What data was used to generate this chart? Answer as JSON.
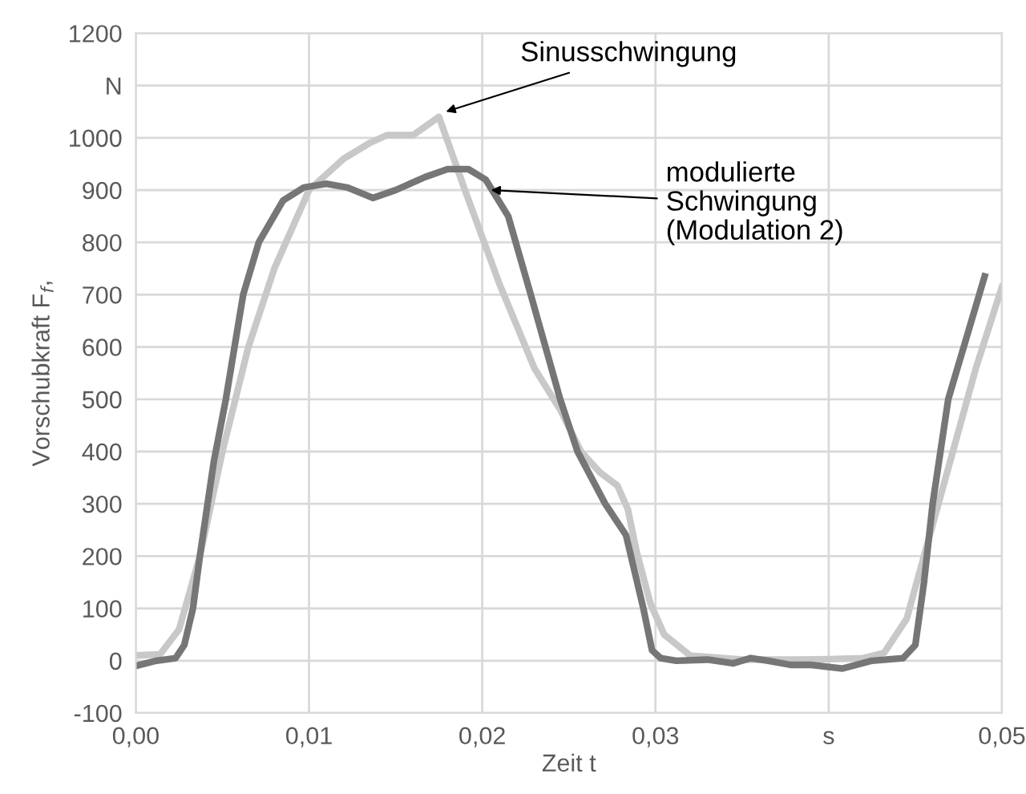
{
  "chart_data": {
    "type": "line",
    "xlabel": "Zeit t",
    "ylabel": "Vorschubkraft F$_{f}$,",
    "xlim": [
      0,
      0.05
    ],
    "ylim": [
      -100,
      1200
    ],
    "xticks": [
      {
        "value": 0,
        "label": "0,00"
      },
      {
        "value": 0.01,
        "label": "0,01"
      },
      {
        "value": 0.02,
        "label": "0,02"
      },
      {
        "value": 0.03,
        "label": "0,03"
      },
      {
        "value": 0.04,
        "label": "s"
      },
      {
        "value": 0.05,
        "label": "0,05"
      }
    ],
    "yticks": [
      -100,
      0,
      100,
      200,
      300,
      400,
      500,
      600,
      700,
      800,
      900,
      1000,
      {
        "value": 1100,
        "label": "N"
      },
      1200
    ],
    "grid": true,
    "legend": false,
    "marker": "none",
    "line_style": "solid",
    "series": [
      {
        "color": "#c8c8c8",
        "x": [
          0,
          0.0014,
          0.0025,
          0.0037,
          0.005,
          0.0065,
          0.008,
          0.01,
          0.012,
          0.0135,
          0.0145,
          0.016,
          0.0175,
          0.019,
          0.021,
          0.023,
          0.0245,
          0.0257,
          0.0268,
          0.0278,
          0.0284,
          0.0289,
          0.0297,
          0.0305,
          0.032,
          0.035,
          0.038,
          0.04,
          0.042,
          0.0432,
          0.0445,
          0.0455,
          0.047,
          0.0485,
          0.05
        ],
        "values": [
          10,
          12,
          60,
          200,
          400,
          600,
          750,
          900,
          960,
          990,
          1005,
          1005,
          1040,
          900,
          720,
          560,
          480,
          400,
          360,
          335,
          290,
          210,
          110,
          50,
          10,
          2,
          2,
          3,
          5,
          15,
          80,
          200,
          380,
          560,
          715
        ]
      },
      {
        "color": "#767676",
        "x": [
          0,
          0.0012,
          0.0023,
          0.0028,
          0.0033,
          0.0037,
          0.0045,
          0.0052,
          0.0062,
          0.0071,
          0.0085,
          0.0097,
          0.011,
          0.0122,
          0.0137,
          0.015,
          0.0167,
          0.018,
          0.0192,
          0.0202,
          0.0215,
          0.0228,
          0.0245,
          0.0255,
          0.0271,
          0.0283,
          0.0293,
          0.0298,
          0.0303,
          0.0312,
          0.033,
          0.0345,
          0.0355,
          0.0365,
          0.0378,
          0.039,
          0.0408,
          0.0425,
          0.0443,
          0.045,
          0.0455,
          0.046,
          0.0469,
          0.049
        ],
        "values": [
          -10,
          0,
          5,
          30,
          100,
          200,
          380,
          500,
          700,
          800,
          880,
          905,
          912,
          905,
          885,
          900,
          925,
          940,
          940,
          920,
          850,
          700,
          500,
          400,
          300,
          240,
          100,
          20,
          5,
          0,
          2,
          -5,
          5,
          0,
          -8,
          -8,
          -15,
          0,
          5,
          30,
          150,
          300,
          500,
          735
        ]
      }
    ],
    "annotations": [
      {
        "text": "Sinusschwingung",
        "x": 0.0179,
        "y": 1050
      },
      {
        "text": "modulierte\nSchwingung\n(Modulation 2)",
        "x": 0.0205,
        "y": 900
      }
    ]
  }
}
